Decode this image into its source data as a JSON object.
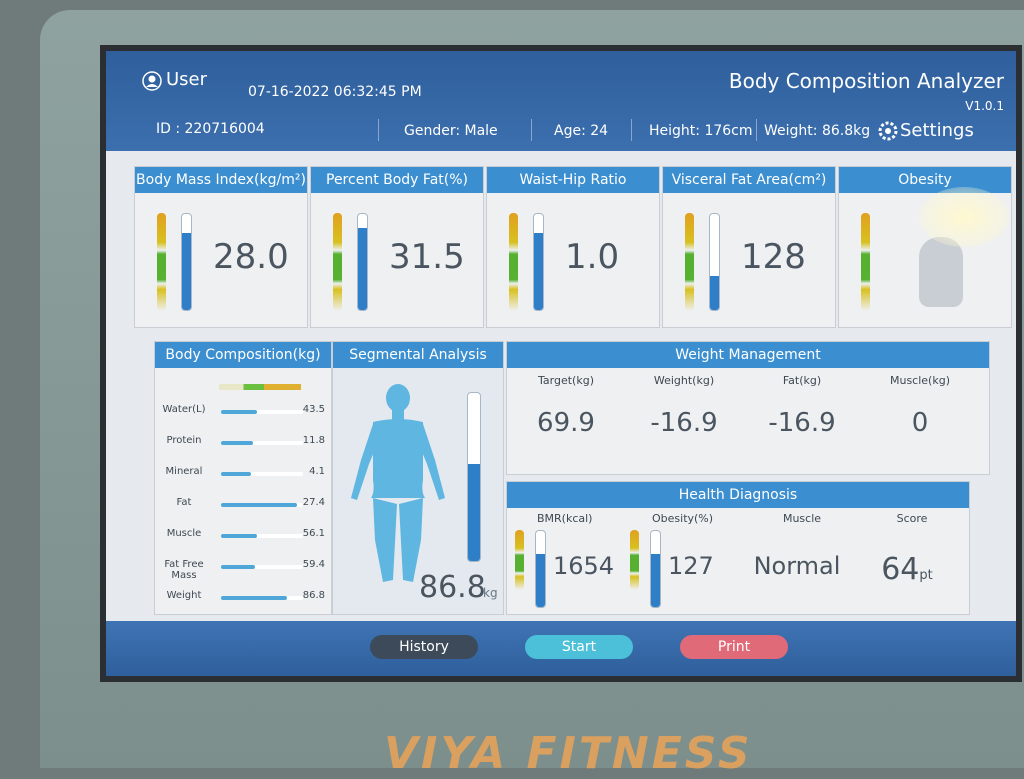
{
  "header": {
    "user": "User",
    "datetime": "07-16-2022 06:32:45 PM",
    "title": "Body Composition Analyzer",
    "version": "V1.0.1",
    "id": "ID : 220716004",
    "gender": "Gender: Male",
    "age": "Age: 24",
    "height": "Height: 176cm",
    "weight": "Weight: 86.8kg",
    "settings": "Settings"
  },
  "metrics": [
    {
      "label": "Body Mass Index(kg/m²)",
      "value": "28.0"
    },
    {
      "label": "Percent Body Fat(%)",
      "value": "31.5"
    },
    {
      "label": "Waist-Hip Ratio",
      "value": "1.0"
    },
    {
      "label": "Visceral Fat Area(cm²)",
      "value": "128"
    },
    {
      "label": "Obesity"
    }
  ],
  "body_composition": {
    "title": "Body Composition(kg)",
    "rows": [
      {
        "label": "Water(L)",
        "value": "43.5"
      },
      {
        "label": "Protein",
        "value": "11.8"
      },
      {
        "label": "Mineral",
        "value": "4.1"
      },
      {
        "label": "Fat",
        "value": "27.4"
      },
      {
        "label": "Muscle",
        "value": "56.1"
      },
      {
        "label": "Fat Free Mass",
        "value": "59.4"
      },
      {
        "label": "Weight",
        "value": "86.8"
      }
    ]
  },
  "segmental": {
    "title": "Segmental Analysis",
    "weight": "86.8",
    "unit": "kg"
  },
  "weight_management": {
    "title": "Weight Management",
    "columns": [
      {
        "label": "Target(kg)",
        "value": "69.9"
      },
      {
        "label": "Weight(kg)",
        "value": "-16.9"
      },
      {
        "label": "Fat(kg)",
        "value": "-16.9"
      },
      {
        "label": "Muscle(kg)",
        "value": "0"
      }
    ]
  },
  "health_diagnosis": {
    "title": "Health Diagnosis",
    "columns": [
      {
        "label": "BMR(kcal)",
        "value": "1654"
      },
      {
        "label": "Obesity(%)",
        "value": "127"
      },
      {
        "label": "Muscle",
        "value": "Normal"
      },
      {
        "label": "Score",
        "value": "64",
        "unit": "pt"
      }
    ]
  },
  "buttons": [
    "History",
    "Start",
    "Print"
  ],
  "brand": "VIYA FITNESS"
}
